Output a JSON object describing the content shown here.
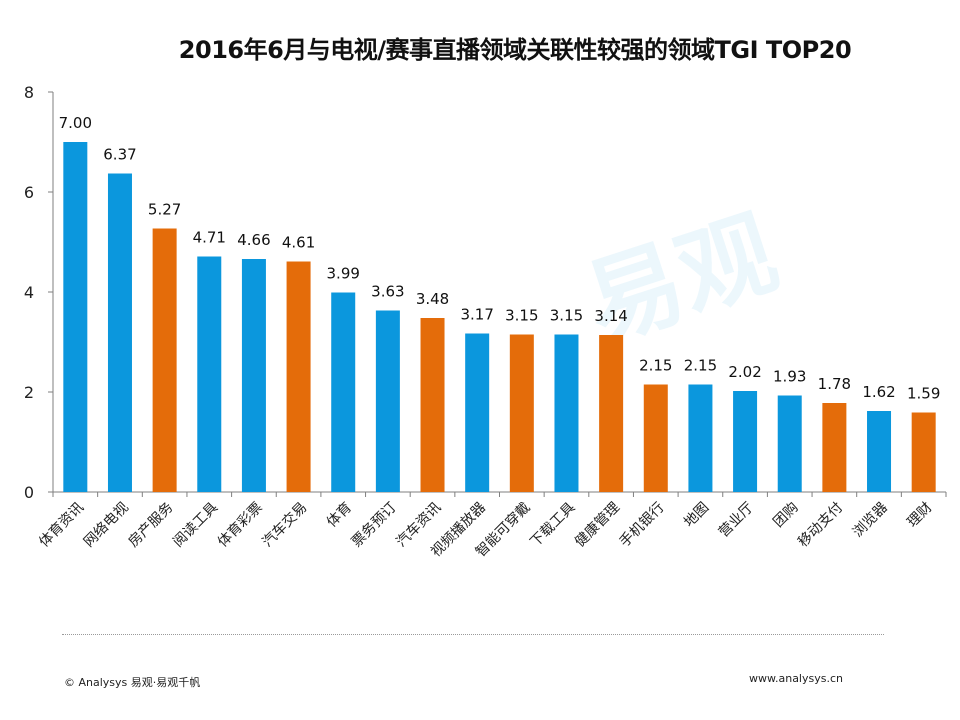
{
  "chart_data": {
    "type": "bar",
    "title": "2016年6月与电视/赛事直播领域关联性较强的领域TGI TOP20",
    "categories": [
      "体育资讯",
      "网络电视",
      "房产服务",
      "阅读工具",
      "体育彩票",
      "汽车交易",
      "体育",
      "票务预订",
      "汽车资讯",
      "视频播放器",
      "智能可穿戴",
      "下载工具",
      "健康管理",
      "手机银行",
      "地图",
      "营业厅",
      "团购",
      "移动支付",
      "浏览器",
      "理财"
    ],
    "values": [
      7.0,
      6.37,
      5.27,
      4.71,
      4.66,
      4.61,
      3.99,
      3.63,
      3.48,
      3.17,
      3.15,
      3.15,
      3.14,
      2.15,
      2.15,
      2.02,
      1.93,
      1.78,
      1.62,
      1.59
    ],
    "value_labels": [
      "7.00",
      "6.37",
      "5.27",
      "4.71",
      "4.66",
      "4.61",
      "3.99",
      "3.63",
      "3.48",
      "3.17",
      "3.15",
      "3.15",
      "3.14",
      "2.15",
      "2.15",
      "2.02",
      "1.93",
      "1.78",
      "1.62",
      "1.59"
    ],
    "bar_colors": [
      "blue",
      "blue",
      "orange",
      "blue",
      "blue",
      "orange",
      "blue",
      "blue",
      "orange",
      "blue",
      "orange",
      "blue",
      "orange",
      "orange",
      "blue",
      "blue",
      "blue",
      "orange",
      "blue",
      "orange"
    ],
    "colors": {
      "blue": "#0b97dd",
      "orange": "#e46c0a"
    },
    "yticks": [
      "0",
      "2",
      "4",
      "6",
      "8"
    ],
    "ylim": [
      0,
      8
    ],
    "xlabel": "",
    "ylabel": "",
    "grid": false
  },
  "watermark": "易观",
  "footer": {
    "copyright": "© Analysys 易观·易观千帆",
    "website": "www.analysys.cn"
  }
}
